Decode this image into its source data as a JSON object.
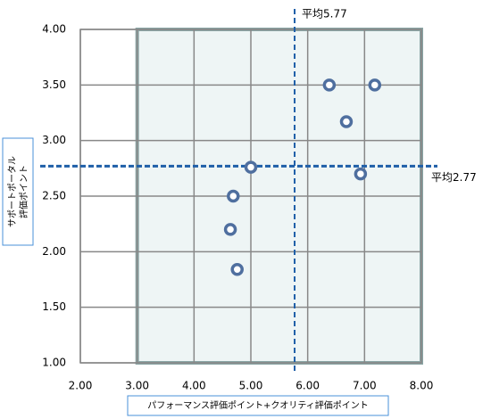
{
  "chart_data": {
    "type": "scatter",
    "xlabel": "パフォーマンス評価ポイント+クオリティ評価ポイント",
    "ylabel": [
      "サポートポータル",
      "評価ポイント"
    ],
    "x": [
      5.0,
      6.38,
      7.18,
      6.68,
      6.93,
      4.69,
      4.64,
      4.76
    ],
    "values": [
      2.76,
      3.5,
      3.5,
      3.17,
      2.7,
      2.5,
      2.2,
      1.84
    ],
    "color": "#4f6f9f",
    "xlim": [
      2,
      8
    ],
    "ylim": [
      1,
      4
    ],
    "xticks": [
      {
        "value": 2,
        "label": "2.00"
      },
      {
        "value": 3,
        "label": "3.00"
      },
      {
        "value": 4,
        "label": "4.00"
      },
      {
        "value": 5,
        "label": "5.00"
      },
      {
        "value": 6,
        "label": "6.00"
      },
      {
        "value": 7,
        "label": "7.00"
      },
      {
        "value": 8,
        "label": "8.00"
      }
    ],
    "yticks": [
      {
        "value": 1,
        "label": "1.00"
      },
      {
        "value": 1.5,
        "label": "1.50"
      },
      {
        "value": 2,
        "label": "2.00"
      },
      {
        "value": 2.5,
        "label": "2.50"
      },
      {
        "value": 3,
        "label": "3.00"
      },
      {
        "value": 3.5,
        "label": "3.50"
      },
      {
        "value": 4,
        "label": "4.00"
      }
    ],
    "grid": true,
    "mean_lines": [
      {
        "axis": "x",
        "value": 5.77,
        "label": "平均5.77"
      },
      {
        "axis": "y",
        "value": 2.77,
        "label": "平均2.77"
      }
    ]
  }
}
